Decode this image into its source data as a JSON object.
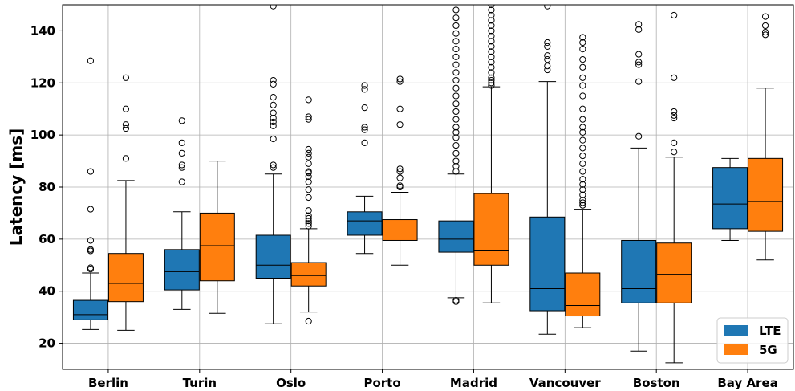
{
  "chart_data": {
    "type": "box",
    "ylabel": "Latency [ms]",
    "xlabel": "",
    "ylim": [
      10,
      150
    ],
    "yticks": [
      20,
      40,
      60,
      80,
      100,
      120,
      140
    ],
    "grid": true,
    "legend_position": "bottom-right",
    "categories": [
      "Berlin",
      "Turin",
      "Oslo",
      "Porto",
      "Madrid",
      "Vancouver",
      "Boston",
      "Bay Area"
    ],
    "series": [
      {
        "name": "LTE",
        "color": "#1f77b4",
        "boxes": [
          {
            "whislo": 25.3,
            "q1": 29.0,
            "med": 31.0,
            "q3": 36.5,
            "whishi": 47.0,
            "fliers": [
              48.5,
              49,
              55.5,
              56,
              59.5,
              71.5,
              86,
              128.5
            ]
          },
          {
            "whislo": 33.0,
            "q1": 40.5,
            "med": 47.5,
            "q3": 56.0,
            "whishi": 70.5,
            "fliers": [
              82,
              87.5,
              88.5,
              93,
              97,
              105.5
            ]
          },
          {
            "whislo": 27.5,
            "q1": 45.0,
            "med": 50.0,
            "q3": 61.5,
            "whishi": 85.0,
            "fliers": [
              87.5,
              88.5,
              98.5,
              103.5,
              105,
              106.5,
              108.5,
              111.5,
              114.5,
              119.5,
              121,
              149.5
            ]
          },
          {
            "whislo": 54.5,
            "q1": 61.5,
            "med": 67.0,
            "q3": 70.5,
            "whishi": 76.5,
            "fliers": [
              97,
              102,
              103,
              110.5,
              117.5,
              119
            ]
          },
          {
            "whislo": 37.5,
            "q1": 55.0,
            "med": 60.0,
            "q3": 67.0,
            "whishi": 85.0,
            "fliers": [
              36,
              36.5,
              86,
              88,
              90,
              93,
              96,
              99,
              101,
              103,
              106,
              109,
              112,
              115,
              118,
              121,
              124,
              127,
              130,
              133,
              136,
              139,
              142,
              145,
              148
            ]
          },
          {
            "whislo": 23.5,
            "q1": 32.5,
            "med": 41.0,
            "q3": 68.5,
            "whishi": 120.5,
            "fliers": [
              125,
              126.5,
              129,
              130.5,
              134,
              135.5,
              149.5
            ]
          },
          {
            "whislo": 17.0,
            "q1": 35.5,
            "med": 41.0,
            "q3": 59.5,
            "whishi": 95.0,
            "fliers": [
              99.5,
              120.5,
              127,
              128,
              131,
              140.5,
              142.5
            ]
          },
          {
            "whislo": 59.5,
            "q1": 64.0,
            "med": 73.5,
            "q3": 87.5,
            "whishi": 91.0,
            "fliers": []
          }
        ]
      },
      {
        "name": "5G",
        "color": "#ff7f0e",
        "boxes": [
          {
            "whislo": 25.0,
            "q1": 36.0,
            "med": 43.0,
            "q3": 54.5,
            "whishi": 82.5,
            "fliers": [
              91,
              102.5,
              104,
              110,
              122
            ]
          },
          {
            "whislo": 31.5,
            "q1": 44.0,
            "med": 57.5,
            "q3": 70.0,
            "whishi": 90.0,
            "fliers": []
          },
          {
            "whislo": 32.0,
            "q1": 42.0,
            "med": 46.0,
            "q3": 51.0,
            "whishi": 64.0,
            "fliers": [
              28.5,
              65,
              66,
              67,
              68,
              69,
              71,
              76,
              79,
              82,
              84,
              85.5,
              86,
              89,
              91.5,
              93,
              94.5,
              106,
              107,
              113.5
            ]
          },
          {
            "whislo": 50.0,
            "q1": 59.5,
            "med": 63.5,
            "q3": 67.5,
            "whishi": 78.0,
            "fliers": [
              80,
              80.5,
              83.5,
              86,
              87,
              104,
              110,
              120.5,
              121.5
            ]
          },
          {
            "whislo": 35.5,
            "q1": 50.0,
            "med": 55.5,
            "q3": 77.5,
            "whishi": 118.5,
            "fliers": [
              119,
              120,
              121,
              122,
              124,
              126,
              128,
              130,
              132,
              134,
              136,
              138,
              140,
              142,
              144,
              146,
              148,
              150
            ]
          },
          {
            "whislo": 26.0,
            "q1": 30.5,
            "med": 34.5,
            "q3": 47.0,
            "whishi": 71.5,
            "fliers": [
              73,
              74,
              75,
              77,
              79,
              81,
              83,
              86,
              89,
              92,
              95,
              98,
              101,
              103,
              106,
              110,
              115,
              119,
              122,
              126,
              129,
              133,
              135.5,
              137.5
            ]
          },
          {
            "whislo": 12.5,
            "q1": 35.5,
            "med": 46.5,
            "q3": 58.5,
            "whishi": 91.5,
            "fliers": [
              93.5,
              97,
              106.5,
              107.5,
              109,
              122,
              146
            ]
          },
          {
            "whislo": 52.0,
            "q1": 63.0,
            "med": 74.5,
            "q3": 91.0,
            "whishi": 118.0,
            "fliers": [
              138.5,
              139.5,
              142,
              145.5
            ]
          }
        ]
      }
    ]
  }
}
